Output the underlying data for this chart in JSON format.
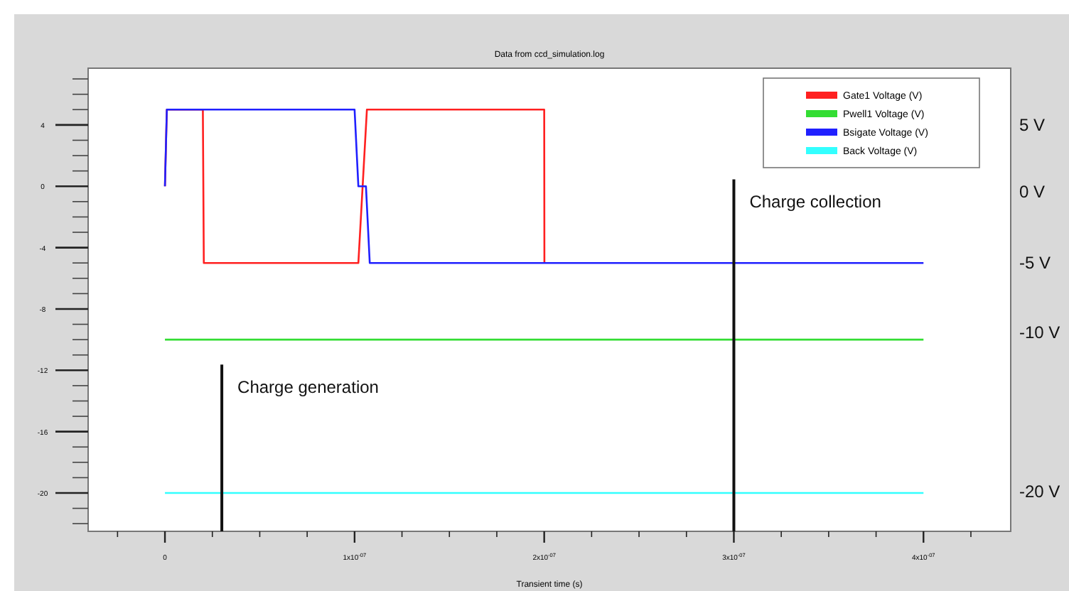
{
  "chart_data": {
    "type": "line",
    "title": "Data from ccd_simulation.log",
    "xlabel": "Transient time (s)",
    "xlim": [
      -4.05e-08,
      4.46e-07
    ],
    "ylim": [
      -22.5,
      7.7
    ],
    "xticks": [
      {
        "value": -2.5e-08,
        "label": null
      },
      {
        "value": 0,
        "label": "0"
      },
      {
        "value": 2.5e-08,
        "label": null
      },
      {
        "value": 5e-08,
        "label": null
      },
      {
        "value": 7.5e-08,
        "label": null
      },
      {
        "value": 1e-07,
        "label": "1x10$^{-07}$"
      },
      {
        "value": 1.25e-07,
        "label": null
      },
      {
        "value": 1.5e-07,
        "label": null
      },
      {
        "value": 1.75e-07,
        "label": null
      },
      {
        "value": 2e-07,
        "label": "2x10$^{-07}$"
      },
      {
        "value": 2.25e-07,
        "label": null
      },
      {
        "value": 2.5e-07,
        "label": null
      },
      {
        "value": 2.75e-07,
        "label": null
      },
      {
        "value": 3e-07,
        "label": "3x10$^{-07}$"
      },
      {
        "value": 3.25e-07,
        "label": null
      },
      {
        "value": 3.5e-07,
        "label": null
      },
      {
        "value": 3.75e-07,
        "label": null
      },
      {
        "value": 4e-07,
        "label": "4x10$^{-07}$"
      },
      {
        "value": 4.25e-07,
        "label": null
      }
    ],
    "yticks": [
      {
        "value": 7,
        "label": null
      },
      {
        "value": 6,
        "label": null
      },
      {
        "value": 5,
        "label": null
      },
      4,
      {
        "value": 3,
        "label": null
      },
      {
        "value": 2,
        "label": null
      },
      {
        "value": 1,
        "label": null
      },
      0,
      {
        "value": -1,
        "label": null
      },
      {
        "value": -2,
        "label": null
      },
      {
        "value": -3,
        "label": null
      },
      -4,
      {
        "value": -5,
        "label": null
      },
      {
        "value": -6,
        "label": null
      },
      {
        "value": -7,
        "label": null
      },
      -8,
      {
        "value": -9,
        "label": null
      },
      {
        "value": -10,
        "label": null
      },
      {
        "value": -11,
        "label": null
      },
      -12,
      {
        "value": -13,
        "label": null
      },
      {
        "value": -14,
        "label": null
      },
      {
        "value": -15,
        "label": null
      },
      -16,
      {
        "value": -17,
        "label": null
      },
      {
        "value": -18,
        "label": null
      },
      {
        "value": -19,
        "label": null
      },
      -20,
      {
        "value": -21,
        "label": null
      },
      {
        "value": -22,
        "label": null
      }
    ],
    "grid": false,
    "legend": "top right",
    "marker": "none",
    "line_style": "solid",
    "series": [
      {
        "name": "Gate1 Voltage (V)",
        "color": "#ff2020",
        "x": [
          0,
          1e-09,
          2e-08,
          2.05e-08,
          1.02e-07,
          1.065e-07,
          2e-07,
          2.001e-07
        ],
        "values": [
          0,
          5,
          5,
          -5,
          -5,
          5,
          5,
          -5
        ]
      },
      {
        "name": "Pwell1 Voltage (V)",
        "color": "#33dd33",
        "x": [
          0,
          4e-07
        ],
        "values": [
          -10,
          -10
        ]
      },
      {
        "name": "Bsigate Voltage (V)",
        "color": "#2020ff",
        "x": [
          0,
          1e-09,
          1e-07,
          1.02e-07,
          1.06e-07,
          1.08e-07,
          4e-07
        ],
        "values": [
          0,
          5,
          5,
          0,
          0,
          -5,
          -5
        ]
      },
      {
        "name": "Back Voltage (V)",
        "color": "#33ffff",
        "x": [
          0,
          4e-07
        ],
        "values": [
          -20,
          -20
        ]
      }
    ],
    "ref_lines": [
      {
        "axis": "x",
        "value": 3e-08,
        "label": "Charge generation",
        "color": "#111111"
      },
      {
        "axis": "x",
        "value": 3e-07,
        "label": "Charge collection",
        "color": "#111111"
      }
    ],
    "annotations": [
      "5 V",
      "0 V",
      "-5 V",
      "-10 V",
      "-20 V"
    ]
  }
}
